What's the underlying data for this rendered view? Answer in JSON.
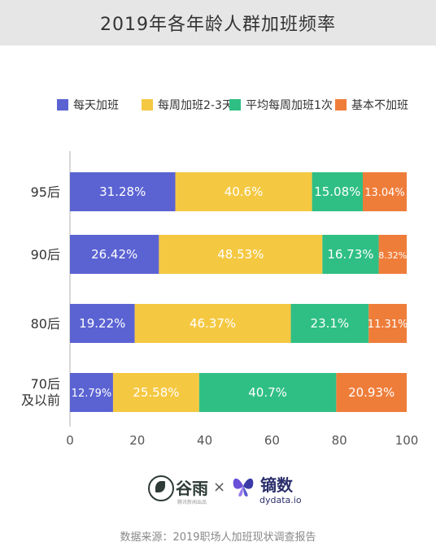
{
  "title": "2019年各年龄人群加班频率",
  "legend": [
    {
      "label": "每天加班",
      "color": "#5b63d3"
    },
    {
      "label": "每周加班2-3天",
      "color": "#f5c842"
    },
    {
      "label": "平均每周加班1次",
      "color": "#2fbf84"
    },
    {
      "label": "基本不加班",
      "color": "#ef7d3a"
    }
  ],
  "chart_data": {
    "type": "bar",
    "orientation": "horizontal",
    "stacked": true,
    "categories": [
      "95后",
      "90后",
      "80后",
      "70后\n及以前"
    ],
    "series": [
      {
        "name": "每天加班",
        "color": "#5b63d3",
        "values": [
          31.28,
          26.42,
          19.22,
          12.79
        ],
        "labels": [
          "31.28%",
          "26.42%",
          "19.22%",
          "12.79%"
        ]
      },
      {
        "name": "每周加班2-3天",
        "color": "#f5c842",
        "values": [
          40.6,
          48.53,
          46.37,
          25.58
        ],
        "labels": [
          "40.6%",
          "48.53%",
          "46.37%",
          "25.58%"
        ]
      },
      {
        "name": "平均每周加班1次",
        "color": "#2fbf84",
        "values": [
          15.08,
          16.73,
          23.1,
          40.7
        ],
        "labels": [
          "15.08%",
          "16.73%",
          "23.1%",
          "40.7%"
        ]
      },
      {
        "name": "基本不加班",
        "color": "#ef7d3a",
        "values": [
          13.04,
          8.32,
          11.31,
          20.93
        ],
        "labels": [
          "13.04%",
          "8.32%",
          "11.31%",
          "20.93%"
        ]
      }
    ],
    "xlim": [
      0,
      100
    ],
    "xticks": [
      0,
      20,
      40,
      60,
      80,
      100
    ],
    "grid": false,
    "legend_position": "top"
  },
  "logos": {
    "brand_a": "谷雨",
    "brand_a_sub": "腾讯新闻出品",
    "separator": "×",
    "brand_b": "镝数",
    "brand_b_sub": "dydata.io"
  },
  "source": "数据来源：2019职场人加班现状调查报告"
}
